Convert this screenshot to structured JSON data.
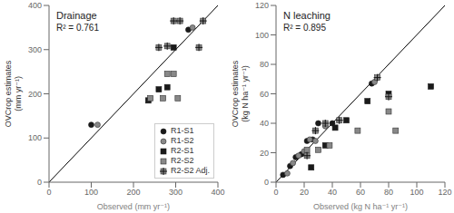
{
  "chart_data": [
    {
      "type": "scatter",
      "title": "Drainage",
      "annotations": [
        "R² = 0.761"
      ],
      "x_label": "Observed (mm yr⁻¹)",
      "y_label": "OVCrop estimates\n(mm yr⁻¹)",
      "xlim": [
        0,
        400
      ],
      "ylim": [
        0,
        400
      ],
      "xticks": [
        0,
        100,
        200,
        300,
        400
      ],
      "yticks": [
        0,
        100,
        200,
        300,
        400
      ],
      "legend": "lower right",
      "series": [
        {
          "name": "R1-S1",
          "color": "#1a1a1a",
          "marker": "circle",
          "x": [
            100,
            330
          ],
          "y": [
            130,
            345
          ]
        },
        {
          "name": "R1-S2",
          "color": "#888888",
          "marker": "circle",
          "x": [
            115,
            340
          ],
          "y": [
            130,
            350
          ]
        },
        {
          "name": "R2-S1",
          "color": "#1a1a1a",
          "marker": "square",
          "x": [
            235,
            260,
            280,
            295
          ],
          "y": [
            185,
            210,
            215,
            305
          ]
        },
        {
          "name": "R2-S2",
          "color": "#888888",
          "marker": "square",
          "x": [
            240,
            270,
            280,
            295,
            305
          ],
          "y": [
            190,
            190,
            245,
            245,
            190
          ]
        },
        {
          "name": "R2-S2 Adj.",
          "color": "#888888",
          "marker": "square_plus",
          "x": [
            260,
            280,
            295,
            310,
            355,
            365
          ],
          "y": [
            305,
            308,
            365,
            365,
            305,
            365
          ]
        }
      ]
    },
    {
      "type": "scatter",
      "title": "N leaching",
      "annotations": [
        "R² = 0.895"
      ],
      "x_label": "Observed (kg N ha⁻¹ yr⁻¹)",
      "y_label": "OVCrop estimates\n(kg N ha⁻¹ yr⁻¹)",
      "xlim": [
        0,
        120
      ],
      "ylim": [
        0,
        120
      ],
      "xticks": [
        0,
        20,
        40,
        60,
        80,
        100,
        120
      ],
      "yticks": [
        0,
        20,
        40,
        60,
        80,
        100,
        120
      ],
      "series": [
        {
          "name": "R1-S1",
          "color": "#1a1a1a",
          "marker": "circle",
          "x": [
            5,
            10,
            14,
            18,
            22,
            26,
            30,
            40,
            68
          ],
          "y": [
            5,
            11,
            17,
            19,
            28,
            29,
            40,
            40,
            67
          ]
        },
        {
          "name": "R1-S2",
          "color": "#888888",
          "marker": "circle",
          "x": [
            8,
            12,
            16,
            20,
            24,
            28,
            35,
            70
          ],
          "y": [
            6,
            13,
            18,
            21,
            29,
            28,
            38,
            68
          ]
        },
        {
          "name": "R2-S1",
          "color": "#1a1a1a",
          "marker": "square",
          "x": [
            25,
            35,
            42,
            50,
            65,
            80,
            110
          ],
          "y": [
            10,
            25,
            37,
            42,
            55,
            60,
            65
          ]
        },
        {
          "name": "R2-S2",
          "color": "#888888",
          "marker": "square",
          "x": [
            22,
            30,
            38,
            58,
            80,
            85
          ],
          "y": [
            22,
            22,
            25,
            35,
            48,
            35
          ]
        },
        {
          "name": "R2-S2 Adj.",
          "color": "#888888",
          "marker": "square_plus",
          "x": [
            22,
            28,
            35,
            45,
            72,
            80
          ],
          "y": [
            18,
            35,
            40,
            42,
            71,
            58
          ]
        }
      ]
    }
  ]
}
